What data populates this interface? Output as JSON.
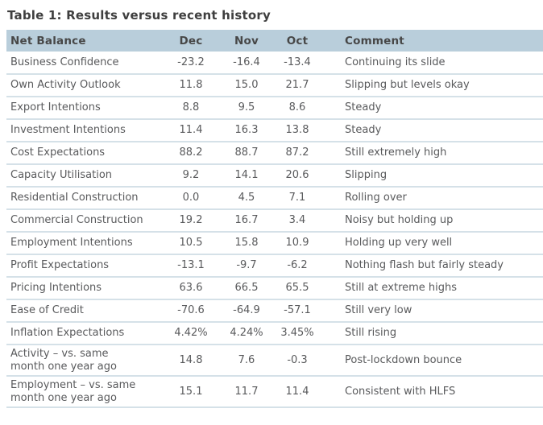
{
  "table": {
    "title": "Table 1: Results versus recent history",
    "columns": [
      "Net Balance",
      "Dec",
      "Nov",
      "Oct",
      "Comment"
    ],
    "rows": [
      {
        "label": "Business Confidence",
        "dec": "-23.2",
        "nov": "-16.4",
        "oct": "-13.4",
        "comment": "Continuing its slide"
      },
      {
        "label": "Own Activity Outlook",
        "dec": "11.8",
        "nov": "15.0",
        "oct": "21.7",
        "comment": "Slipping but levels okay"
      },
      {
        "label": "Export Intentions",
        "dec": "8.8",
        "nov": "9.5",
        "oct": "8.6",
        "comment": "Steady"
      },
      {
        "label": "Investment Intentions",
        "dec": "11.4",
        "nov": "16.3",
        "oct": "13.8",
        "comment": "Steady"
      },
      {
        "label": "Cost Expectations",
        "dec": "88.2",
        "nov": "88.7",
        "oct": "87.2",
        "comment": "Still extremely high"
      },
      {
        "label": "Capacity Utilisation",
        "dec": "9.2",
        "nov": "14.1",
        "oct": "20.6",
        "comment": "Slipping"
      },
      {
        "label": "Residential Construction",
        "dec": "0.0",
        "nov": "4.5",
        "oct": "7.1",
        "comment": "Rolling over"
      },
      {
        "label": "Commercial Construction",
        "dec": "19.2",
        "nov": "16.7",
        "oct": "3.4",
        "comment": "Noisy but holding up"
      },
      {
        "label": "Employment Intentions",
        "dec": "10.5",
        "nov": "15.8",
        "oct": "10.9",
        "comment": "Holding up very well"
      },
      {
        "label": "Profit Expectations",
        "dec": "-13.1",
        "nov": "-9.7",
        "oct": "-6.2",
        "comment": "Nothing flash but fairly steady"
      },
      {
        "label": "Pricing Intentions",
        "dec": "63.6",
        "nov": "66.5",
        "oct": "65.5",
        "comment": "Still at extreme highs"
      },
      {
        "label": "Ease of Credit",
        "dec": "-70.6",
        "nov": "-64.9",
        "oct": "-57.1",
        "comment": "Still very low"
      },
      {
        "label": "Inflation Expectations",
        "dec": "4.42%",
        "nov": "4.24%",
        "oct": "3.45%",
        "comment": "Still rising"
      },
      {
        "label": "Activity – vs. same\nmonth one year ago",
        "dec": "14.8",
        "nov": "7.6",
        "oct": "-0.3",
        "comment": "Post-lockdown bounce",
        "tall": true
      },
      {
        "label": "Employment – vs. same\nmonth one year ago",
        "dec": "15.1",
        "nov": "11.7",
        "oct": "11.4",
        "comment": "Consistent with HLFS",
        "tall": true
      }
    ]
  },
  "colors": {
    "header_bg": "#b9cedb",
    "header_text": "#474747",
    "body_text": "#595a5c",
    "title_text": "#3f3f3f",
    "divider": "#d5e1e8"
  }
}
